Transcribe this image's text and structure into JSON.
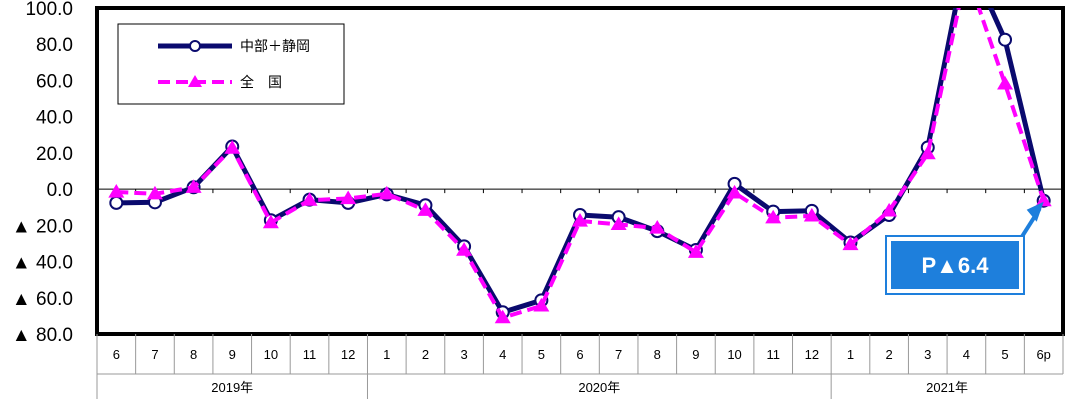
{
  "chart_data": {
    "type": "line",
    "categories": [
      "6",
      "7",
      "8",
      "9",
      "10",
      "11",
      "12",
      "1",
      "2",
      "3",
      "4",
      "5",
      "6",
      "7",
      "8",
      "9",
      "10",
      "11",
      "12",
      "1",
      "2",
      "3",
      "4",
      "5",
      "6p"
    ],
    "year_groups": [
      {
        "label": "2019年",
        "start": 0,
        "end": 6
      },
      {
        "label": "2020年",
        "start": 7,
        "end": 18
      },
      {
        "label": "2021年",
        "start": 19,
        "end": 24
      }
    ],
    "ylim": [
      -80,
      100
    ],
    "yticks": [
      {
        "value": 100,
        "label": "100.0"
      },
      {
        "value": 80,
        "label": "80.0"
      },
      {
        "value": 60,
        "label": "60.0"
      },
      {
        "value": 40,
        "label": "40.0"
      },
      {
        "value": 20,
        "label": "20.0"
      },
      {
        "value": 0,
        "label": "0.0"
      },
      {
        "value": -20,
        "label": "▲ 20.0"
      },
      {
        "value": -40,
        "label": "▲ 40.0"
      },
      {
        "value": -60,
        "label": "▲ 60.0"
      },
      {
        "value": -80,
        "label": "▲ 80.0"
      }
    ],
    "series": [
      {
        "name": "中部＋静岡",
        "color": "#0a0a6e",
        "marker": "circle",
        "values": [
          -7.6,
          -7.3,
          1.0,
          23.5,
          -17.2,
          -5.8,
          -7.6,
          -2.9,
          -8.9,
          -31.6,
          -68.0,
          -61.4,
          -14.3,
          -15.5,
          -23.2,
          -33.6,
          2.9,
          -12.4,
          -12.0,
          -29.5,
          -14.3,
          23.0,
          130,
          82.5,
          -6.4
        ]
      },
      {
        "name": "全　国",
        "color": "#ff00ff",
        "marker": "triangle",
        "values": [
          -1.6,
          -2.6,
          1.0,
          22.6,
          -18.5,
          -6.1,
          -5.2,
          -2.6,
          -11.7,
          -33.7,
          -71.0,
          -64.5,
          -17.6,
          -19.5,
          -21.5,
          -34.9,
          -2.1,
          -15.8,
          -14.8,
          -30.6,
          -12.0,
          19.6,
          120,
          58.1,
          -6.4
        ]
      }
    ],
    "annotation": {
      "text": "P▲6.4",
      "target_index": 24
    }
  }
}
